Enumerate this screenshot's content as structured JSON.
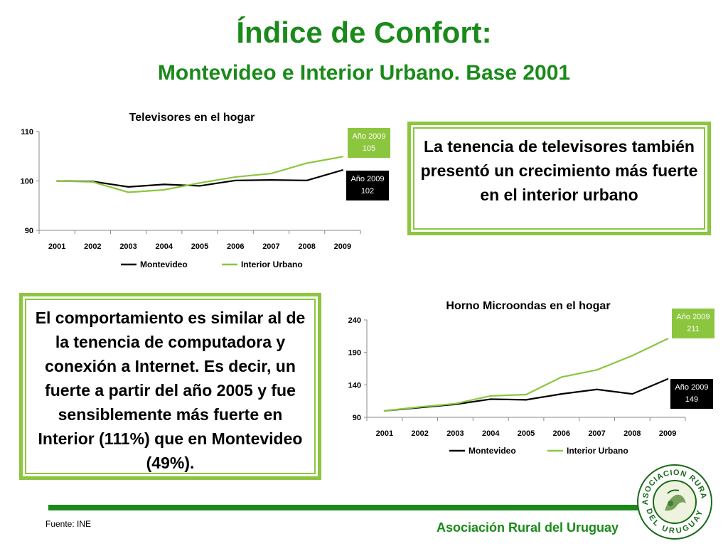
{
  "title": "Índice de Confort:",
  "subtitle": "Montevideo e Interior Urbano. Base 2001",
  "box1_text": "La tenencia de televisores también presentó un crecimiento más fuerte en el interior urbano",
  "box2_text": "El comportamiento es similar al de la tenencia de computadora y conexión a Internet. Es decir, un fuerte a partir del año 2005 y fue sensiblemente más fuerte en Interior (111%) que en Montevideo (49%).",
  "footer": {
    "source": "Fuente: INE",
    "org": "Asociación Rural del Uruguay",
    "logo_text_top": "ASOCIACION RURAL",
    "logo_text_bottom": "DEL URUGUAY"
  },
  "colors": {
    "montevideo": "#000000",
    "interior": "#8cc63f",
    "brand_green": "#1a8a1a"
  },
  "chart_data": [
    {
      "type": "line",
      "title": "Televisores en el hogar",
      "categories": [
        "2001",
        "2002",
        "2003",
        "2004",
        "2005",
        "2006",
        "2007",
        "2008",
        "2009"
      ],
      "ylim": [
        90,
        110
      ],
      "yticks": [
        90,
        100,
        110
      ],
      "legend_position": "bottom",
      "series": [
        {
          "name": "Montevideo",
          "color": "#000000",
          "values": [
            100,
            99.9,
            98.8,
            99.3,
            99.0,
            100.1,
            100.2,
            100.1,
            102.2
          ]
        },
        {
          "name": "Interior Urbano",
          "color": "#8cc63f",
          "values": [
            100,
            99.8,
            97.7,
            98.2,
            99.6,
            100.8,
            101.5,
            103.6,
            104.9
          ]
        }
      ],
      "annotations": [
        {
          "text1": "Año 2009",
          "text2": "105",
          "series": "Interior Urbano"
        },
        {
          "text1": "Año 2009",
          "text2": "102",
          "series": "Montevideo"
        }
      ]
    },
    {
      "type": "line",
      "title": "Horno Microondas en el hogar",
      "categories": [
        "2001",
        "2002",
        "2003",
        "2004",
        "2005",
        "2006",
        "2007",
        "2008",
        "2009"
      ],
      "ylim": [
        90,
        240
      ],
      "yticks": [
        90,
        140,
        190,
        240
      ],
      "legend_position": "bottom",
      "series": [
        {
          "name": "Montevideo",
          "color": "#000000",
          "values": [
            100,
            105,
            110,
            118,
            117,
            126,
            133,
            126,
            149
          ]
        },
        {
          "name": "Interior Urbano",
          "color": "#8cc63f",
          "values": [
            100,
            106,
            111,
            123,
            125,
            152,
            163,
            185,
            211
          ]
        }
      ],
      "annotations": [
        {
          "text1": "Año 2009",
          "text2": "211",
          "series": "Interior Urbano"
        },
        {
          "text1": "Año 2009",
          "text2": "149",
          "series": "Montevideo"
        }
      ]
    }
  ]
}
